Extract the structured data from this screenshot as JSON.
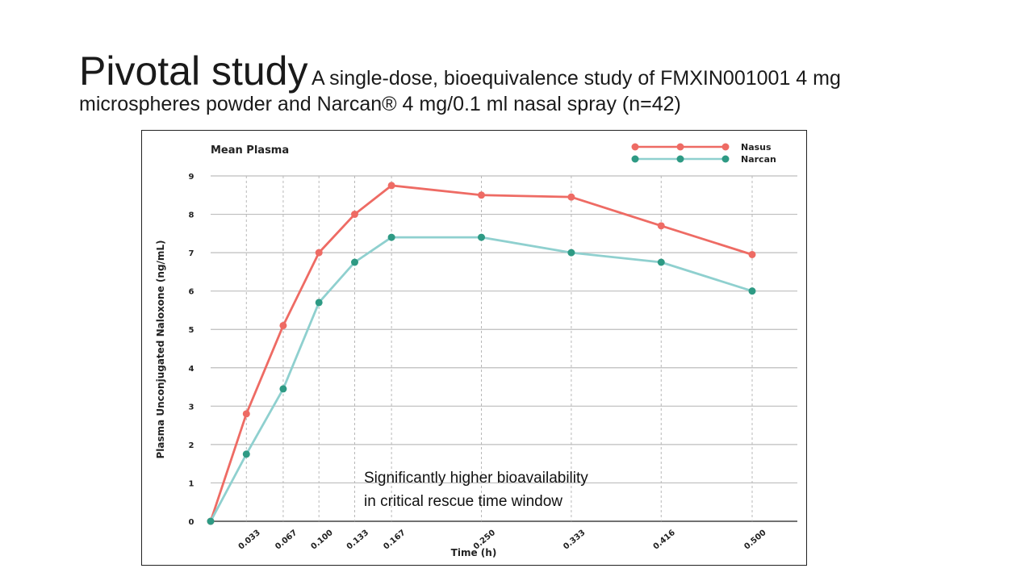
{
  "slide": {
    "title": "Pivotal study",
    "subtitle_line1": "A single-dose, bioequivalence study of FMXIN001001 4 mg",
    "subtitle_line2": "microspheres powder and Narcan® 4 mg/0.1 ml nasal spray (n=42)"
  },
  "chart_data": {
    "type": "line",
    "title": "Mean Plasma",
    "xlabel": "Time (h)",
    "ylabel": "Plasma Unconjugated Naloxone (ng/mL)",
    "x": [
      0,
      0.033,
      0.067,
      0.1,
      0.133,
      0.167,
      0.25,
      0.333,
      0.416,
      0.5
    ],
    "x_tick_labels": [
      "0.033",
      "0.067",
      "0.100",
      "0.133",
      "0.167",
      "0.250",
      "0.333",
      "0.416",
      "0.500"
    ],
    "y_ticks": [
      "0",
      "1",
      "2",
      "3",
      "4",
      "5",
      "6",
      "7",
      "8",
      "9"
    ],
    "ylim": [
      0,
      9
    ],
    "grid": true,
    "legend_position": "top-right",
    "series": [
      {
        "name": "Nasus",
        "color": "#ee6b64",
        "values": [
          0,
          2.8,
          5.1,
          7.0,
          8.0,
          8.75,
          8.5,
          8.45,
          7.7,
          6.95
        ]
      },
      {
        "name": "Narcan",
        "color": "#8fd0cf",
        "marker_color": "#2e9a84",
        "values": [
          0,
          1.75,
          3.45,
          5.7,
          6.75,
          7.4,
          7.4,
          7.0,
          6.75,
          6.0
        ]
      }
    ],
    "annotation": {
      "line1": "Significantly higher bioavailability",
      "line2": "in critical rescue time window"
    }
  }
}
